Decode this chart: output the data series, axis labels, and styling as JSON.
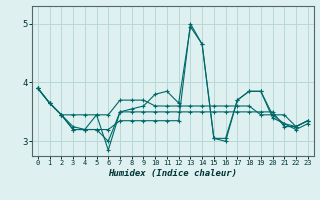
{
  "xlabel": "Humidex (Indice chaleur)",
  "background_color": "#dff0f0",
  "grid_color": "#b8d8d8",
  "line_color": "#006868",
  "xlim": [
    -0.5,
    23.5
  ],
  "ylim": [
    2.75,
    5.3
  ],
  "yticks": [
    3,
    4,
    5
  ],
  "xticks": [
    0,
    1,
    2,
    3,
    4,
    5,
    6,
    7,
    8,
    9,
    10,
    11,
    12,
    13,
    14,
    15,
    16,
    17,
    18,
    19,
    20,
    21,
    22,
    23
  ],
  "series": [
    [
      3.9,
      3.65,
      3.45,
      3.25,
      3.2,
      3.45,
      2.85,
      3.5,
      3.55,
      3.6,
      3.8,
      3.85,
      3.65,
      4.95,
      4.65,
      3.05,
      3.05,
      3.7,
      3.85,
      3.85,
      3.45,
      3.3,
      3.25,
      3.35
    ],
    [
      3.9,
      3.65,
      3.45,
      3.45,
      3.45,
      3.45,
      3.45,
      3.7,
      3.7,
      3.7,
      3.6,
      3.6,
      3.6,
      3.6,
      3.6,
      3.6,
      3.6,
      3.6,
      3.6,
      3.45,
      3.45,
      3.45,
      3.25,
      3.35
    ],
    [
      3.9,
      3.65,
      3.45,
      3.2,
      3.2,
      3.2,
      3.2,
      3.35,
      3.35,
      3.35,
      3.35,
      3.35,
      3.35,
      5.0,
      4.65,
      3.05,
      3.0,
      3.7,
      3.85,
      3.85,
      3.4,
      3.3,
      3.2,
      3.3
    ],
    [
      3.9,
      3.65,
      3.45,
      3.2,
      3.2,
      3.2,
      3.0,
      3.5,
      3.5,
      3.5,
      3.5,
      3.5,
      3.5,
      3.5,
      3.5,
      3.5,
      3.5,
      3.5,
      3.5,
      3.5,
      3.5,
      3.25,
      3.25,
      3.35
    ]
  ]
}
